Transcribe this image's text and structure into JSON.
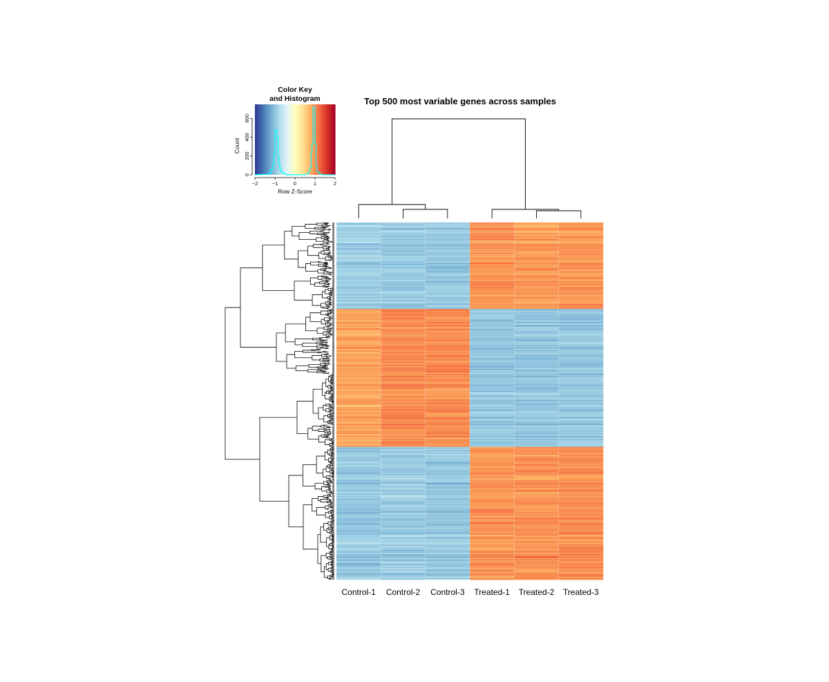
{
  "chart_data": {
    "type": "heatmap",
    "title": "Top 500 most variable genes across samples",
    "columns": [
      "Control-1",
      "Control-2",
      "Control-3",
      "Treated-1",
      "Treated-2",
      "Treated-3"
    ],
    "n_rows": 500,
    "scale": "row z-score",
    "color_palette": [
      "#313695",
      "#4575b4",
      "#74add1",
      "#abd9e9",
      "#e0f3f8",
      "#ffffbf",
      "#fee090",
      "#fdae61",
      "#f46d43",
      "#d73027",
      "#a50026"
    ],
    "color_range": [
      -2,
      2
    ],
    "row_clusters": [
      {
        "rows": 121,
        "mean_z": [
          -0.9,
          -0.95,
          -0.95,
          0.95,
          0.9,
          0.95
        ]
      },
      {
        "rows": 193,
        "mean_z": [
          0.85,
          1.0,
          1.0,
          -0.95,
          -0.95,
          -0.95
        ]
      },
      {
        "rows": 186,
        "mean_z": [
          -0.95,
          -0.9,
          -0.95,
          0.95,
          0.95,
          1.0
        ]
      }
    ],
    "column_dendrogram": {
      "merges": [
        {
          "left": "Control-2",
          "right": "Control-3",
          "height": 0.12
        },
        {
          "left": "Treated-2",
          "right": "Treated-3",
          "height": 0.08
        },
        {
          "left": "Control-1",
          "right": "(Control-2,Control-3)",
          "height": 0.17
        },
        {
          "left": "Treated-1",
          "right": "(Treated-2,Treated-3)",
          "height": 0.12
        },
        {
          "left": "Control",
          "right": "Treated",
          "height": 1.0
        }
      ]
    },
    "color_key": {
      "title_line1": "Color Key",
      "title_line2": "and Histogram",
      "xlabel": "Row Z-Score",
      "ylabel": "Count",
      "xticks": [
        "-2",
        "-1",
        "0",
        "1",
        "2"
      ],
      "yticks": [
        "0",
        "200",
        "400",
        "600"
      ],
      "xlim": [
        -2,
        2
      ],
      "ylim": [
        0,
        750
      ],
      "histogram_color": "#00ffff",
      "histogram": {
        "bin_start": [
          -1.4,
          -1.3,
          -1.2,
          -1.1,
          -1.05,
          -1.0,
          -0.95,
          -0.9,
          -0.85,
          -0.8,
          -0.75,
          -0.7,
          -0.6,
          -0.5,
          0.5,
          0.6,
          0.7,
          0.75,
          0.8,
          0.85,
          0.9,
          0.95,
          1.0,
          1.05,
          1.1,
          1.2,
          1.3
        ],
        "counts": [
          5,
          20,
          60,
          110,
          230,
          480,
          470,
          400,
          190,
          110,
          60,
          30,
          15,
          5,
          5,
          15,
          40,
          80,
          240,
          330,
          720,
          720,
          330,
          100,
          30,
          10,
          3
        ]
      }
    }
  }
}
